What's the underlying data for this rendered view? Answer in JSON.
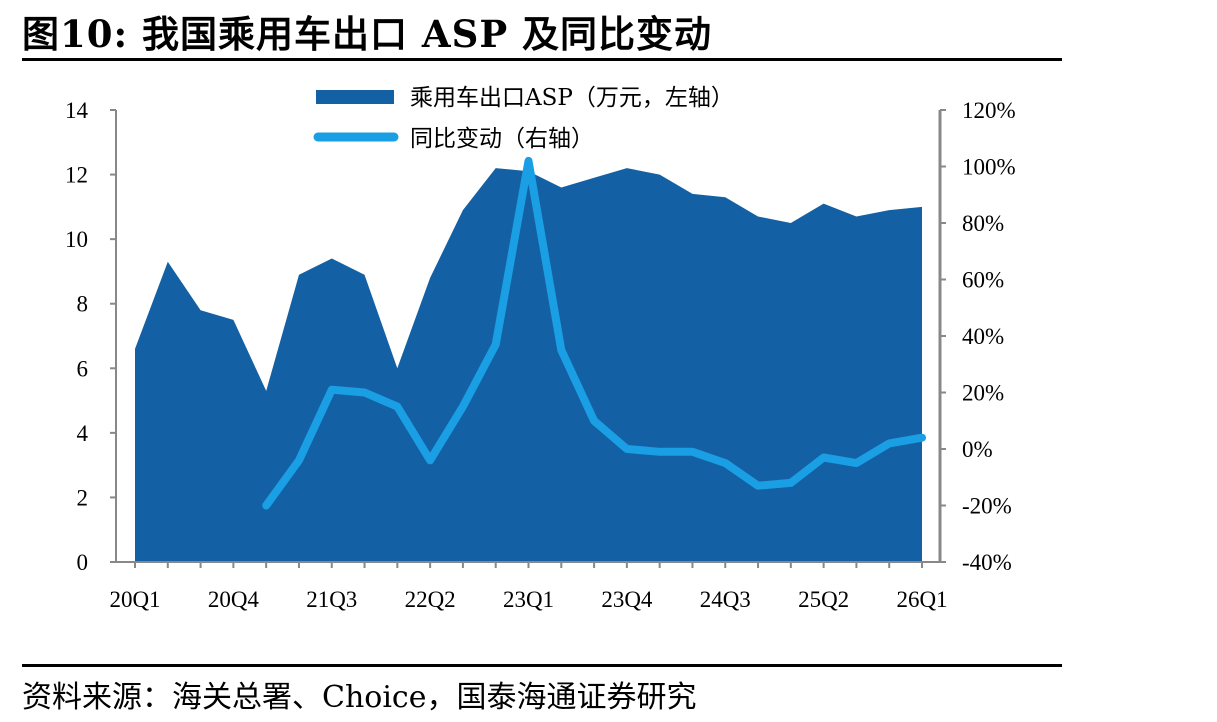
{
  "title": "图10:  我国乘用车出口 ASP 及同比变动",
  "source": "资料来源：海关总署、Choice，国泰海通证券研究",
  "colors": {
    "area": "#1361a4",
    "line": "#1a9ee4",
    "axis": "#888888"
  },
  "chart_data": {
    "type": "area+line",
    "categories": [
      "20Q1",
      "20Q2",
      "20Q3",
      "20Q4",
      "21Q1",
      "21Q2",
      "21Q3",
      "21Q4",
      "22Q1",
      "22Q2",
      "22Q3",
      "22Q4",
      "23Q1",
      "23Q2",
      "23Q3",
      "23Q4",
      "24Q1",
      "24Q2",
      "24Q3",
      "24Q4",
      "25Q1",
      "25Q2",
      "25Q3",
      "25Q4",
      "26Q1"
    ],
    "tick_labels": [
      "20Q1",
      "20Q4",
      "21Q3",
      "22Q2",
      "23Q1",
      "23Q4",
      "24Q3",
      "25Q2",
      "26Q1"
    ],
    "series": [
      {
        "name": "乘用车出口ASP（万元，左轴）",
        "type": "area",
        "axis": "left",
        "values": [
          6.6,
          9.3,
          7.8,
          7.5,
          5.3,
          8.9,
          9.4,
          8.9,
          6.0,
          8.8,
          10.9,
          12.2,
          12.1,
          11.6,
          11.9,
          12.2,
          12.0,
          11.4,
          11.3,
          10.7,
          10.5,
          11.1,
          10.7,
          10.9,
          11.0
        ]
      },
      {
        "name": "同比变动（右轴）",
        "type": "line",
        "axis": "right",
        "values": [
          null,
          null,
          null,
          null,
          -20,
          -4,
          21,
          20,
          15,
          -4,
          15,
          37,
          102,
          35,
          10,
          0,
          -1,
          -1,
          -5,
          -13,
          -12,
          -3,
          -5,
          2,
          4
        ]
      }
    ],
    "left_axis": {
      "min": 0,
      "max": 14,
      "ticks": [
        "0",
        "2",
        "4",
        "6",
        "8",
        "10",
        "12",
        "14"
      ]
    },
    "right_axis": {
      "min": -40,
      "max": 120,
      "ticks": [
        "-40%",
        "-20%",
        "0%",
        "20%",
        "40%",
        "60%",
        "80%",
        "100%",
        "120%"
      ]
    },
    "legend_position": "top-center",
    "grid": false
  }
}
